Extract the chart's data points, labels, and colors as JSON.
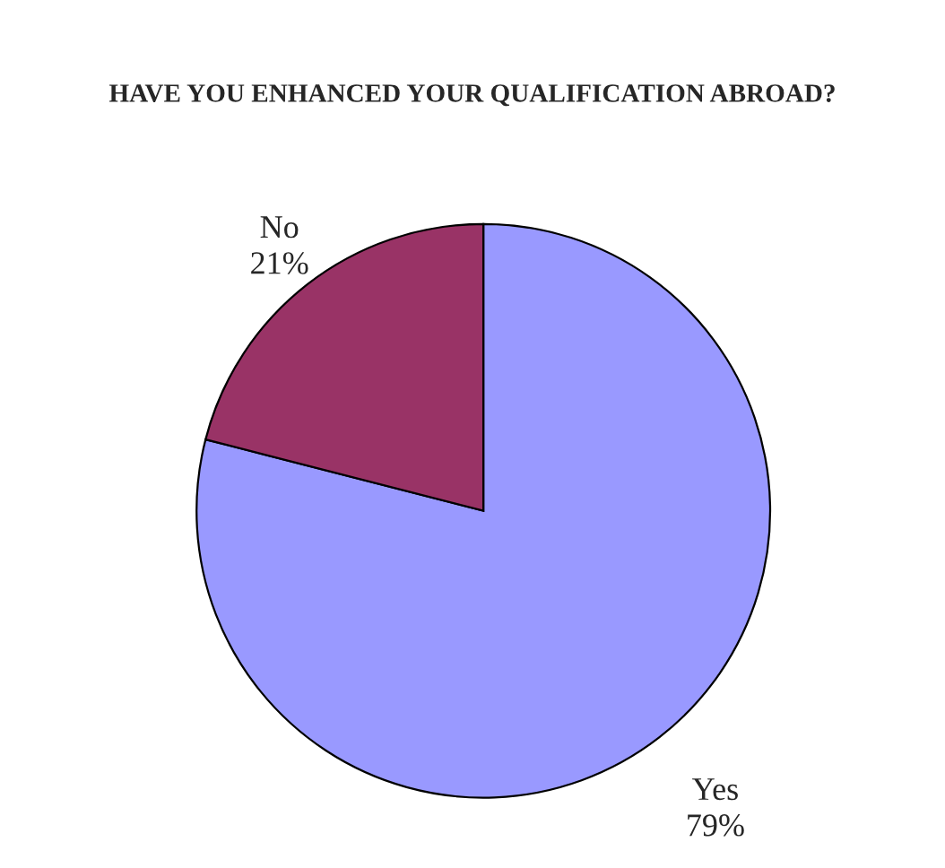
{
  "chart_data": {
    "type": "pie",
    "title": "HAVE YOU ENHANCED YOUR QUALIFICATION ABROAD?",
    "categories": [
      "Yes",
      "No"
    ],
    "values": [
      79,
      21
    ],
    "colors": [
      "#9999ff",
      "#993366"
    ],
    "value_labels": [
      "79%",
      "21%"
    ],
    "legend": false
  }
}
